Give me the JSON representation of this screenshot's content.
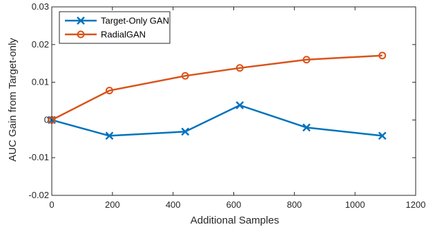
{
  "chart_data": {
    "type": "line",
    "xlabel": "Additional Samples",
    "ylabel": "AUC Gain from Target-only",
    "xlim": [
      0,
      1200
    ],
    "ylim": [
      -0.02,
      0.03
    ],
    "xticks": [
      0,
      200,
      400,
      600,
      800,
      1000,
      1200
    ],
    "xtick_labels": [
      "0",
      "200",
      "400",
      "600",
      "800",
      "1000",
      "1200"
    ],
    "yticks": [
      -0.02,
      -0.01,
      0,
      0.01,
      0.02,
      0.03
    ],
    "ytick_labels": [
      "-0.02",
      "-0.01",
      "0",
      "0.01",
      "0.02",
      "0.03"
    ],
    "grid": false,
    "legend_position": "top-left",
    "x": [
      0,
      190,
      440,
      620,
      840,
      1090
    ],
    "series": [
      {
        "name": "Target-Only GAN",
        "marker": "x",
        "color": "#0072BD",
        "values": [
          0.0,
          -0.0042,
          -0.0031,
          0.0039,
          -0.002,
          -0.0042
        ]
      },
      {
        "name": "RadialGAN",
        "marker": "o",
        "color": "#D95319",
        "values": [
          0.0,
          0.0078,
          0.0117,
          0.0138,
          0.016,
          0.0171
        ]
      }
    ]
  }
}
